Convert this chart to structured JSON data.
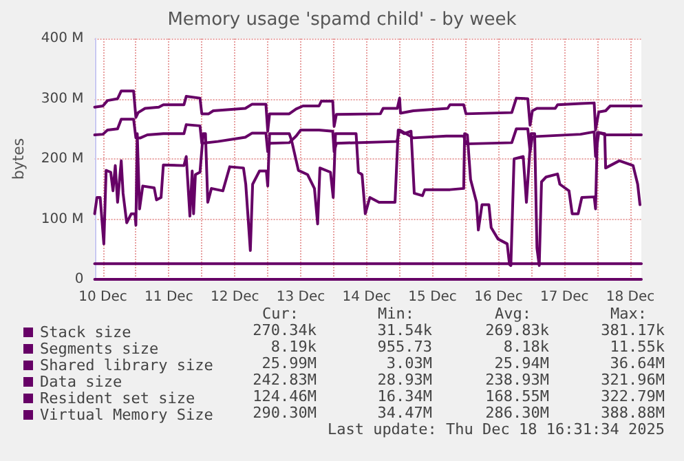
{
  "chart_data": {
    "type": "line",
    "title": "Memory usage 'spamd child' - by week",
    "ylabel": "bytes",
    "xlim": [
      "2025-12-10T09:00",
      "2025-12-18T16:00"
    ],
    "xticks": [
      {
        "value": "2025-12-10T12:00",
        "label": "10 Dec"
      },
      {
        "value": "2025-12-11T00:00",
        "label": null
      },
      {
        "value": "2025-12-11T12:00",
        "label": "11 Dec"
      },
      {
        "value": "2025-12-12T00:00",
        "label": null
      },
      {
        "value": "2025-12-12T12:00",
        "label": "12 Dec"
      },
      {
        "value": "2025-12-13T00:00",
        "label": null
      },
      {
        "value": "2025-12-13T12:00",
        "label": "13 Dec"
      },
      {
        "value": "2025-12-14T00:00",
        "label": null
      },
      {
        "value": "2025-12-14T12:00",
        "label": "14 Dec"
      },
      {
        "value": "2025-12-15T00:00",
        "label": null
      },
      {
        "value": "2025-12-15T12:00",
        "label": "15 Dec"
      },
      {
        "value": "2025-12-16T00:00",
        "label": null
      },
      {
        "value": "2025-12-16T12:00",
        "label": "16 Dec"
      },
      {
        "value": "2025-12-17T00:00",
        "label": null
      },
      {
        "value": "2025-12-17T12:00",
        "label": "17 Dec"
      },
      {
        "value": "2025-12-18T00:00",
        "label": null
      },
      {
        "value": "2025-12-18T12:00",
        "label": "18 Dec"
      }
    ],
    "ylim": [
      0,
      400
    ],
    "yticks": [
      {
        "value": 0,
        "label": "0"
      },
      {
        "value": 100,
        "label": "100 M"
      },
      {
        "value": 200,
        "label": "200 M"
      },
      {
        "value": 300,
        "label": "300 M"
      },
      {
        "value": 400,
        "label": "400 M"
      }
    ],
    "grid": true,
    "legend": "bottom",
    "marker": "none",
    "line_style": "solid",
    "series": [
      {
        "name": "Stack size",
        "color": "#660066",
        "x": [
          "2025-12-10T09:00",
          "2025-12-18T16:00"
        ],
        "values": [
          0,
          0
        ]
      },
      {
        "name": "Segments size",
        "color": "#660066"
      },
      {
        "name": "Shared library size",
        "color": "#660066",
        "x": [
          "2025-12-10T09:00",
          "2025-12-18T16:00"
        ],
        "values": [
          26,
          26
        ]
      },
      {
        "name": "Data size",
        "color": "#660066",
        "x": [
          "2025-12-10T09:00",
          "2025-12-10T12:00",
          "2025-12-10T13:40",
          "2025-12-10T17:20",
          "2025-12-10T18:40",
          "2025-12-10T23:10",
          "2025-12-11T00:00",
          "2025-12-11T01:40",
          "2025-12-11T04:10",
          "2025-12-11T10:00",
          "2025-12-11T17:30",
          "2025-12-11T18:20",
          "2025-12-11T23:20",
          "2025-12-12T00:00",
          "2025-12-12T05:50",
          "2025-12-12T15:50",
          "2025-12-12T18:20",
          "2025-12-12T23:20",
          "2025-12-13T00:00",
          "2025-12-13T00:40",
          "2025-12-13T07:50",
          "2025-12-13T10:20",
          "2025-12-13T12:00",
          "2025-12-13T18:40",
          "2025-12-13T23:40",
          "2025-12-14T00:10",
          "2025-12-14T01:00",
          "2025-12-14T23:00",
          "2025-12-15T00:00",
          "2025-12-15T05:00",
          "2025-12-15T17:00",
          "2025-12-15T23:20",
          "2025-12-16T00:10",
          "2025-12-16T16:50",
          "2025-12-16T18:30",
          "2025-12-16T22:40",
          "2025-12-16T23:30",
          "2025-12-17T00:20",
          "2025-12-17T17:50",
          "2025-12-17T22:50",
          "2025-12-17T23:20",
          "2025-12-18T00:30",
          "2025-12-18T03:00",
          "2025-12-18T16:00"
        ],
        "values": [
          240,
          241,
          248,
          250,
          266,
          266,
          235,
          235,
          240,
          242,
          242,
          257,
          255,
          226,
          229,
          236,
          243,
          243,
          212,
          226,
          227,
          238,
          248,
          248,
          246,
          212,
          226,
          229,
          248,
          235,
          238,
          238,
          225,
          227,
          250,
          250,
          212,
          237,
          241,
          245,
          204,
          244,
          240,
          240
        ]
      },
      {
        "name": "Resident set size",
        "color": "#660066",
        "x": [
          "2025-12-10T09:00",
          "2025-12-10T09:50",
          "2025-12-10T11:00",
          "2025-12-10T12:20",
          "2025-12-10T13:10",
          "2025-12-10T14:50",
          "2025-12-10T15:40",
          "2025-12-10T16:30",
          "2025-12-10T17:20",
          "2025-12-10T18:40",
          "2025-12-10T19:20",
          "2025-12-10T20:40",
          "2025-12-10T22:20",
          "2025-12-10T23:40",
          "2025-12-11T00:00",
          "2025-12-11T00:30",
          "2025-12-11T01:20",
          "2025-12-11T02:30",
          "2025-12-11T06:40",
          "2025-12-11T07:30",
          "2025-12-11T09:10",
          "2025-12-11T10:00",
          "2025-12-11T17:30",
          "2025-12-11T18:20",
          "2025-12-11T19:40",
          "2025-12-11T20:30",
          "2025-12-11T21:00",
          "2025-12-11T21:40",
          "2025-12-11T23:20",
          "2025-12-12T00:30",
          "2025-12-12T01:20",
          "2025-12-12T02:10",
          "2025-12-12T03:30",
          "2025-12-12T07:40",
          "2025-12-12T10:10",
          "2025-12-12T15:10",
          "2025-12-12T16:00",
          "2025-12-12T17:40",
          "2025-12-12T18:30",
          "2025-12-12T21:00",
          "2025-12-12T23:30",
          "2025-12-13T00:00",
          "2025-12-13T00:40",
          "2025-12-13T07:50",
          "2025-12-13T08:40",
          "2025-12-13T11:10",
          "2025-12-13T14:30",
          "2025-12-13T17:00",
          "2025-12-13T18:10",
          "2025-12-13T19:00",
          "2025-12-13T22:50",
          "2025-12-13T23:50",
          "2025-12-14T00:40",
          "2025-12-14T08:10",
          "2025-12-14T09:00",
          "2025-12-14T10:20",
          "2025-12-14T11:30",
          "2025-12-14T13:10",
          "2025-12-14T16:30",
          "2025-12-14T22:20",
          "2025-12-14T23:30",
          "2025-12-15T01:40",
          "2025-12-15T04:10",
          "2025-12-15T05:20",
          "2025-12-15T08:20",
          "2025-12-15T09:10",
          "2025-12-15T18:20",
          "2025-12-15T23:20",
          "2025-12-15T23:40",
          "2025-12-16T00:40",
          "2025-12-16T01:50",
          "2025-12-16T04:00",
          "2025-12-16T04:40",
          "2025-12-16T06:00",
          "2025-12-16T08:30",
          "2025-12-16T09:20",
          "2025-12-16T11:50",
          "2025-12-16T15:10",
          "2025-12-16T16:00",
          "2025-12-16T16:30",
          "2025-12-16T17:40",
          "2025-12-16T21:00",
          "2025-12-16T22:10",
          "2025-12-16T23:00",
          "2025-12-16T23:50",
          "2025-12-17T01:10",
          "2025-12-17T02:00",
          "2025-12-17T02:50",
          "2025-12-17T03:40",
          "2025-12-17T05:20",
          "2025-12-17T09:30",
          "2025-12-17T10:20",
          "2025-12-17T13:40",
          "2025-12-17T14:50",
          "2025-12-17T17:00",
          "2025-12-17T18:20",
          "2025-12-17T22:50",
          "2025-12-17T23:20",
          "2025-12-18T00:00",
          "2025-12-18T02:40",
          "2025-12-18T03:00",
          "2025-12-18T08:00",
          "2025-12-18T13:00",
          "2025-12-18T14:40",
          "2025-12-18T15:30"
        ],
        "values": [
          109,
          136,
          136,
          59,
          181,
          178,
          147,
          189,
          128,
          197,
          143,
          94,
          109,
          109,
          90,
          242,
          117,
          155,
          152,
          132,
          136,
          190,
          189,
          204,
          105,
          180,
          109,
          174,
          178,
          242,
          242,
          128,
          151,
          147,
          187,
          185,
          158,
          48,
          158,
          180,
          180,
          155,
          242,
          242,
          231,
          181,
          174,
          151,
          92,
          185,
          178,
          136,
          242,
          242,
          178,
          174,
          109,
          136,
          128,
          128,
          248,
          242,
          246,
          143,
          139,
          149,
          149,
          151,
          242,
          240,
          166,
          128,
          82,
          124,
          124,
          86,
          67,
          59,
          25,
          23,
          200,
          204,
          128,
          185,
          242,
          242,
          52,
          23,
          162,
          170,
          175,
          158,
          147,
          109,
          109,
          136,
          137,
          117,
          244,
          242,
          185,
          197,
          189,
          158,
          124
        ]
      },
      {
        "name": "Virtual Memory Size",
        "color": "#660066",
        "x": [
          "2025-12-10T09:00",
          "2025-12-10T12:00",
          "2025-12-10T13:40",
          "2025-12-10T17:20",
          "2025-12-10T18:40",
          "2025-12-10T23:10",
          "2025-12-11T00:00",
          "2025-12-11T00:50",
          "2025-12-11T03:20",
          "2025-12-11T08:20",
          "2025-12-11T10:00",
          "2025-12-11T17:30",
          "2025-12-11T18:20",
          "2025-12-11T23:20",
          "2025-12-12T00:00",
          "2025-12-12T02:30",
          "2025-12-12T04:10",
          "2025-12-12T15:50",
          "2025-12-12T18:20",
          "2025-12-12T23:20",
          "2025-12-13T00:00",
          "2025-12-13T00:40",
          "2025-12-13T07:50",
          "2025-12-13T10:20",
          "2025-12-13T12:50",
          "2025-12-13T18:40",
          "2025-12-13T19:30",
          "2025-12-13T23:40",
          "2025-12-14T00:10",
          "2025-12-14T01:00",
          "2025-12-14T17:00",
          "2025-12-14T18:00",
          "2025-12-14T23:10",
          "2025-12-15T00:00",
          "2025-12-15T00:20",
          "2025-12-15T05:00",
          "2025-12-15T17:30",
          "2025-12-15T18:20",
          "2025-12-15T23:20",
          "2025-12-16T00:10",
          "2025-12-16T16:50",
          "2025-12-16T18:30",
          "2025-12-16T22:40",
          "2025-12-16T23:30",
          "2025-12-17T00:20",
          "2025-12-17T02:00",
          "2025-12-17T08:40",
          "2025-12-17T09:30",
          "2025-12-17T17:50",
          "2025-12-17T22:50",
          "2025-12-17T23:20",
          "2025-12-18T00:30",
          "2025-12-18T03:00",
          "2025-12-18T04:40",
          "2025-12-18T16:00"
        ],
        "values": [
          286,
          288,
          297,
          300,
          313,
          313,
          269,
          277,
          284,
          286,
          290,
          290,
          304,
          301,
          275,
          275,
          280,
          284,
          291,
          291,
          246,
          275,
          275,
          283,
          288,
          288,
          296,
          296,
          254,
          274,
          275,
          284,
          284,
          301,
          276,
          280,
          284,
          290,
          290,
          275,
          277,
          301,
          300,
          256,
          280,
          284,
          284,
          290,
          292,
          293,
          248,
          278,
          280,
          288,
          288
        ]
      }
    ],
    "annotations": [
      "Cur:",
      "Min:",
      "Avg:",
      "Max:",
      "270.34k",
      "31.54k",
      "269.83k",
      "381.17k",
      "8.19k",
      "955.73",
      "8.18k",
      "11.55k",
      "25.99M",
      "3.03M",
      "25.94M",
      "36.64M",
      "242.83M",
      "28.93M",
      "238.93M",
      "321.96M",
      "124.46M",
      "16.34M",
      "168.55M",
      "322.79M",
      "290.30M",
      "34.47M",
      "286.30M",
      "388.88M",
      "Last update: Thu Dec 18 16:31:34 2025"
    ]
  }
}
